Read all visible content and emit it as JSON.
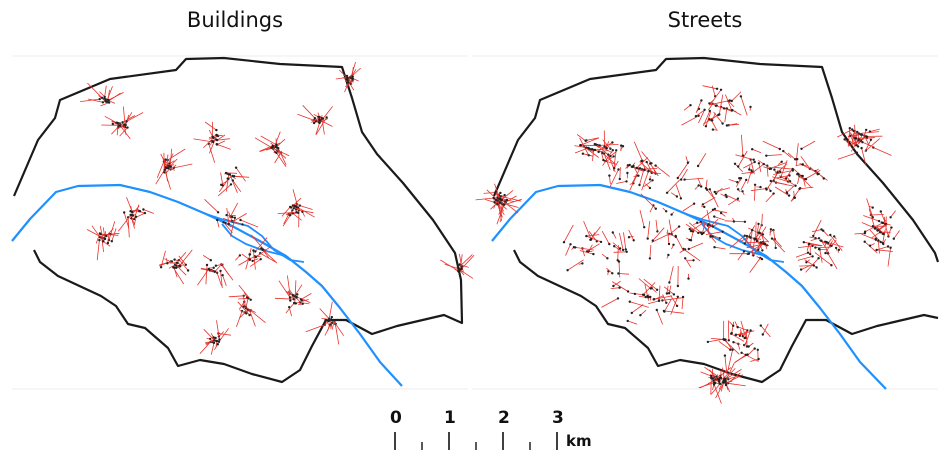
{
  "panels": [
    {
      "title": "Buildings"
    },
    {
      "title": "Streets"
    }
  ],
  "scale_bar": {
    "labels": [
      "0",
      "1",
      "2",
      "3"
    ],
    "unit": "km"
  },
  "colors": {
    "boundary": "#1a1a1a",
    "river": "#1e90ff",
    "displacement": "#e8322c",
    "point": "#222222"
  }
}
